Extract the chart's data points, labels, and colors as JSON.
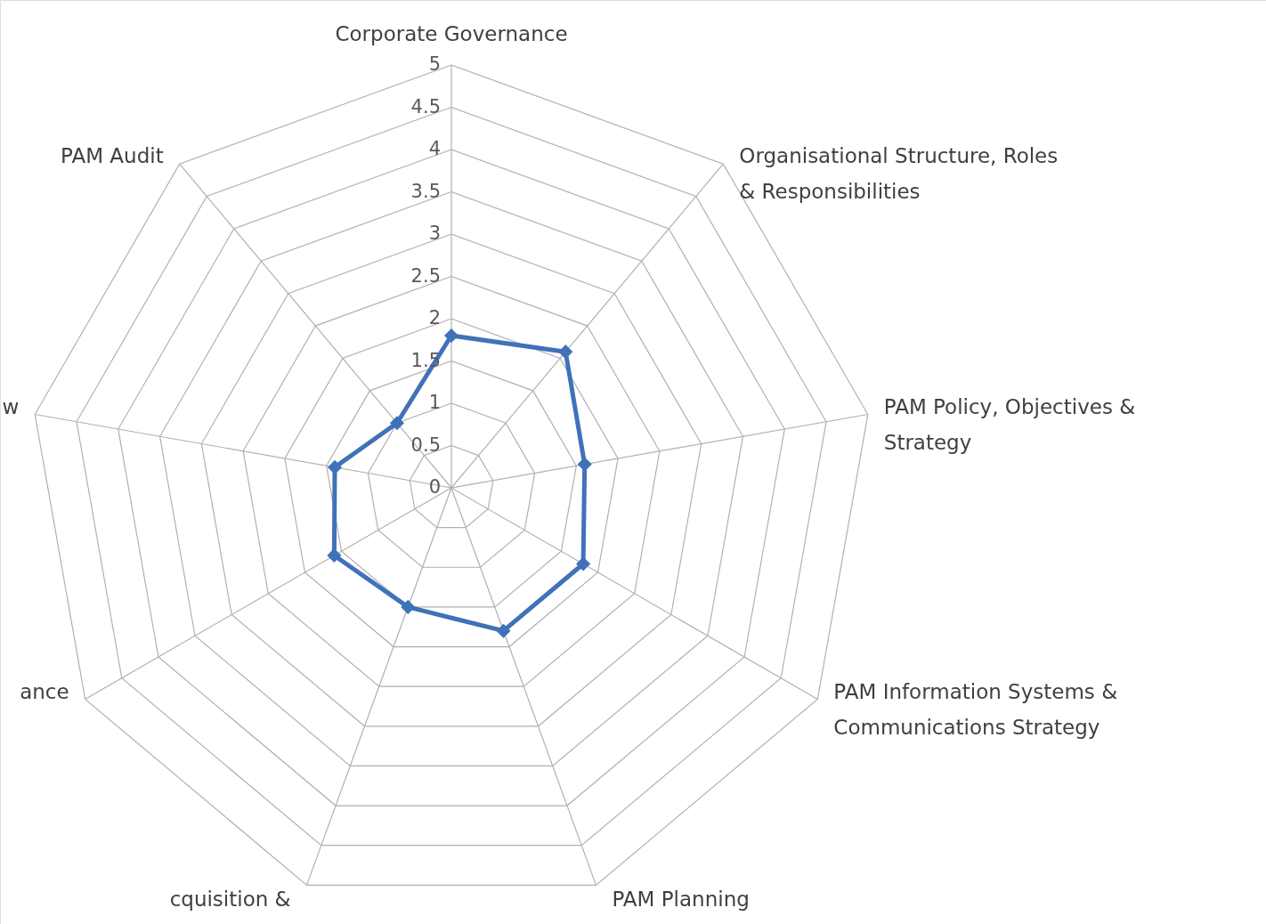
{
  "chart_data": {
    "type": "radar",
    "categories": [
      "Corporate Governance",
      "Organisational Structure, Roles & Responsibilities",
      "PAM Policy, Objectives & Strategy",
      "PAM Information Systems & Communications Strategy",
      "PAM Planning",
      "cquisition &",
      "ance",
      "w",
      "PAM Audit"
    ],
    "series": [
      {
        "color": "#3f72b8",
        "values": [
          1.8,
          2.1,
          1.6,
          1.8,
          1.8,
          1.5,
          1.6,
          1.4,
          1.0
        ]
      }
    ],
    "ylim": [
      0,
      5
    ],
    "yticks": [
      0,
      0.5,
      1,
      1.5,
      2,
      2.5,
      3,
      3.5,
      4,
      4.5,
      5
    ],
    "grid": true,
    "marker": "diamond"
  }
}
